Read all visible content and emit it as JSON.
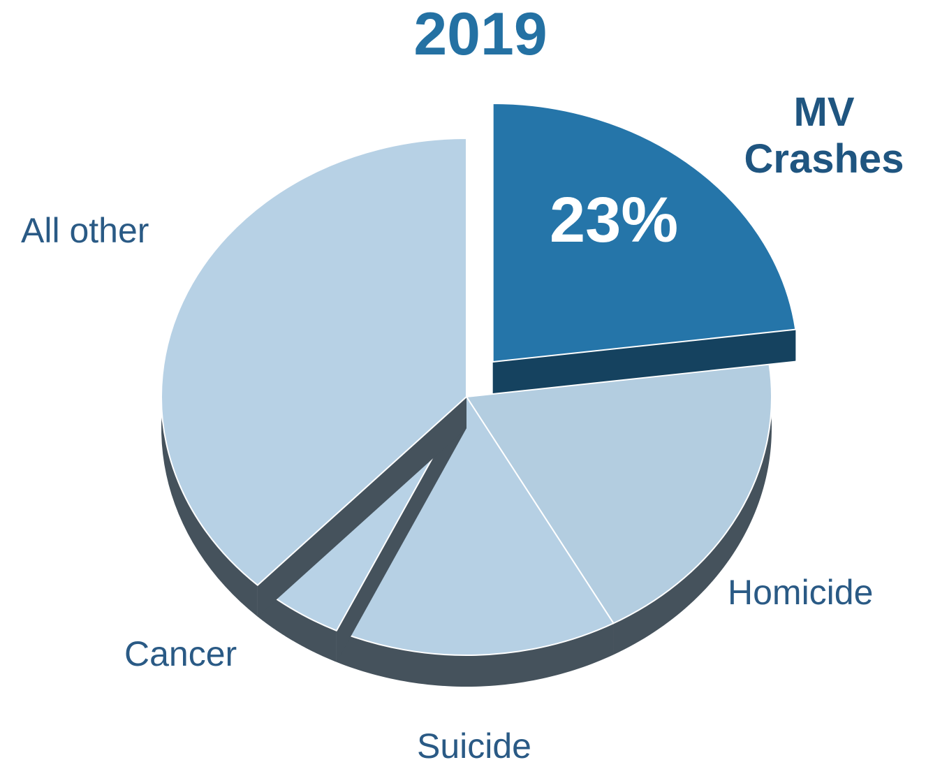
{
  "chart_data": {
    "type": "pie",
    "title": "2019",
    "categories": [
      "MV Crashes",
      "Homicide",
      "Suicide",
      "Cancer",
      "All other"
    ],
    "values": [
      23,
      19,
      15,
      5,
      38
    ],
    "value_labels": [
      "23%",
      null,
      null,
      null,
      null
    ],
    "colors": [
      "#2575a9",
      "#b3cde0",
      "#b6d0e4",
      "#b8d2e6",
      "#b7d1e5"
    ],
    "exploded": [
      "MV Crashes"
    ]
  }
}
